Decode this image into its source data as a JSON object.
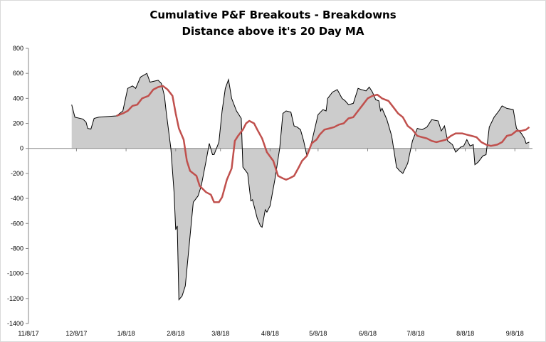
{
  "chart_data": {
    "type": "area",
    "title": "Cumulative P&F Breakouts - Breakdowns",
    "subtitle": "Distance above it's 20 Day MA",
    "xlabel": "",
    "ylabel": "",
    "ylim": [
      -1400,
      800
    ],
    "xlim": [
      "2017-11-08",
      "2018-09-19"
    ],
    "grid": false,
    "legend": "none",
    "y_ticks": [
      800,
      600,
      400,
      200,
      0,
      -200,
      -400,
      -600,
      -800,
      -1000,
      -1200,
      -1400
    ],
    "x_ticks": [
      "11/8/17",
      "12/8/17",
      "1/8/18",
      "2/8/18",
      "3/8/18",
      "4/8/18",
      "5/8/18",
      "6/8/18",
      "7/8/18",
      "8/8/18",
      "9/8/18"
    ],
    "series": [
      {
        "role": "distance",
        "style": "filled area with black outline",
        "fill_color": "#cccccc",
        "line_color": "#000000",
        "points": [
          [
            "2017-12-05",
            350
          ],
          [
            "2017-12-07",
            250
          ],
          [
            "2017-12-12",
            235
          ],
          [
            "2017-12-14",
            210
          ],
          [
            "2017-12-15",
            160
          ],
          [
            "2017-12-17",
            155
          ],
          [
            "2017-12-19",
            240
          ],
          [
            "2017-12-22",
            250
          ],
          [
            "2018-01-02",
            260
          ],
          [
            "2018-01-06",
            300
          ],
          [
            "2018-01-09",
            480
          ],
          [
            "2018-01-12",
            500
          ],
          [
            "2018-01-14",
            480
          ],
          [
            "2018-01-17",
            570
          ],
          [
            "2018-01-21",
            600
          ],
          [
            "2018-01-23",
            530
          ],
          [
            "2018-01-28",
            545
          ],
          [
            "2018-01-30",
            520
          ],
          [
            "2018-02-01",
            420
          ],
          [
            "2018-02-02",
            300
          ],
          [
            "2018-02-05",
            0
          ],
          [
            "2018-02-07",
            -350
          ],
          [
            "2018-02-08",
            -650
          ],
          [
            "2018-02-09",
            -620
          ],
          [
            "2018-02-10",
            -1210
          ],
          [
            "2018-02-12",
            -1180
          ],
          [
            "2018-02-14",
            -1100
          ],
          [
            "2018-02-19",
            -430
          ],
          [
            "2018-02-22",
            -380
          ],
          [
            "2018-02-24",
            -300
          ],
          [
            "2018-02-27",
            -100
          ],
          [
            "2018-03-01",
            40
          ],
          [
            "2018-03-03",
            -50
          ],
          [
            "2018-03-04",
            -50
          ],
          [
            "2018-03-07",
            50
          ],
          [
            "2018-03-09",
            300
          ],
          [
            "2018-03-11",
            480
          ],
          [
            "2018-03-13",
            550
          ],
          [
            "2018-03-15",
            400
          ],
          [
            "2018-03-18",
            300
          ],
          [
            "2018-03-21",
            240
          ],
          [
            "2018-03-22",
            -150
          ],
          [
            "2018-03-25",
            -200
          ],
          [
            "2018-03-27",
            -420
          ],
          [
            "2018-03-28",
            -410
          ],
          [
            "2018-03-31",
            -560
          ],
          [
            "2018-04-02",
            -620
          ],
          [
            "2018-04-03",
            -630
          ],
          [
            "2018-04-05",
            -490
          ],
          [
            "2018-04-06",
            -510
          ],
          [
            "2018-04-08",
            -460
          ],
          [
            "2018-04-11",
            -250
          ],
          [
            "2018-04-14",
            0
          ],
          [
            "2018-04-16",
            280
          ],
          [
            "2018-04-18",
            300
          ],
          [
            "2018-04-21",
            290
          ],
          [
            "2018-04-23",
            180
          ],
          [
            "2018-04-25",
            170
          ],
          [
            "2018-04-27",
            150
          ],
          [
            "2018-04-29",
            60
          ],
          [
            "2018-05-01",
            -60
          ],
          [
            "2018-05-04",
            50
          ],
          [
            "2018-05-08",
            270
          ],
          [
            "2018-05-11",
            310
          ],
          [
            "2018-05-13",
            300
          ],
          [
            "2018-05-14",
            400
          ],
          [
            "2018-05-17",
            450
          ],
          [
            "2018-05-20",
            470
          ],
          [
            "2018-05-23",
            400
          ],
          [
            "2018-05-25",
            380
          ],
          [
            "2018-05-27",
            350
          ],
          [
            "2018-05-30",
            360
          ],
          [
            "2018-06-02",
            480
          ],
          [
            "2018-06-04",
            470
          ],
          [
            "2018-06-07",
            460
          ],
          [
            "2018-06-09",
            490
          ],
          [
            "2018-06-11",
            450
          ],
          [
            "2018-06-13",
            390
          ],
          [
            "2018-06-15",
            380
          ],
          [
            "2018-06-16",
            300
          ],
          [
            "2018-06-17",
            320
          ],
          [
            "2018-06-20",
            230
          ],
          [
            "2018-06-23",
            100
          ],
          [
            "2018-06-26",
            -150
          ],
          [
            "2018-06-28",
            -180
          ],
          [
            "2018-06-30",
            -200
          ],
          [
            "2018-07-03",
            -120
          ],
          [
            "2018-07-06",
            60
          ],
          [
            "2018-07-09",
            160
          ],
          [
            "2018-07-12",
            150
          ],
          [
            "2018-07-15",
            170
          ],
          [
            "2018-07-18",
            230
          ],
          [
            "2018-07-22",
            220
          ],
          [
            "2018-07-24",
            140
          ],
          [
            "2018-07-26",
            180
          ],
          [
            "2018-07-28",
            60
          ],
          [
            "2018-07-31",
            30
          ],
          [
            "2018-08-02",
            -30
          ],
          [
            "2018-08-05",
            10
          ],
          [
            "2018-08-07",
            20
          ],
          [
            "2018-08-09",
            70
          ],
          [
            "2018-08-11",
            20
          ],
          [
            "2018-08-13",
            30
          ],
          [
            "2018-08-14",
            -130
          ],
          [
            "2018-08-16",
            -110
          ],
          [
            "2018-08-19",
            -60
          ],
          [
            "2018-08-21",
            -50
          ],
          [
            "2018-08-23",
            170
          ],
          [
            "2018-08-26",
            250
          ],
          [
            "2018-08-29",
            300
          ],
          [
            "2018-08-31",
            340
          ],
          [
            "2018-09-03",
            320
          ],
          [
            "2018-09-07",
            310
          ],
          [
            "2018-09-09",
            160
          ],
          [
            "2018-09-12",
            120
          ],
          [
            "2018-09-14",
            80
          ],
          [
            "2018-09-15",
            40
          ],
          [
            "2018-09-17",
            50
          ]
        ]
      },
      {
        "role": "20-day moving average",
        "style": "line",
        "line_color": "#c0504d",
        "points": [
          [
            "2018-01-02",
            260
          ],
          [
            "2018-01-06",
            280
          ],
          [
            "2018-01-09",
            300
          ],
          [
            "2018-01-12",
            340
          ],
          [
            "2018-01-15",
            350
          ],
          [
            "2018-01-18",
            400
          ],
          [
            "2018-01-22",
            420
          ],
          [
            "2018-01-25",
            470
          ],
          [
            "2018-01-28",
            490
          ],
          [
            "2018-01-31",
            500
          ],
          [
            "2018-02-03",
            470
          ],
          [
            "2018-02-06",
            420
          ],
          [
            "2018-02-08",
            280
          ],
          [
            "2018-02-10",
            160
          ],
          [
            "2018-02-13",
            70
          ],
          [
            "2018-02-15",
            -100
          ],
          [
            "2018-02-17",
            -180
          ],
          [
            "2018-02-21",
            -220
          ],
          [
            "2018-02-23",
            -300
          ],
          [
            "2018-02-27",
            -350
          ],
          [
            "2018-03-02",
            -370
          ],
          [
            "2018-03-04",
            -430
          ],
          [
            "2018-03-07",
            -430
          ],
          [
            "2018-03-09",
            -390
          ],
          [
            "2018-03-12",
            -250
          ],
          [
            "2018-03-15",
            -160
          ],
          [
            "2018-03-17",
            60
          ],
          [
            "2018-03-19",
            100
          ],
          [
            "2018-03-22",
            150
          ],
          [
            "2018-03-24",
            200
          ],
          [
            "2018-03-26",
            220
          ],
          [
            "2018-03-29",
            200
          ],
          [
            "2018-03-31",
            150
          ],
          [
            "2018-04-03",
            80
          ],
          [
            "2018-04-06",
            -30
          ],
          [
            "2018-04-10",
            -100
          ],
          [
            "2018-04-13",
            -220
          ],
          [
            "2018-04-16",
            -240
          ],
          [
            "2018-04-18",
            -250
          ],
          [
            "2018-04-20",
            -240
          ],
          [
            "2018-04-23",
            -220
          ],
          [
            "2018-04-26",
            -150
          ],
          [
            "2018-04-28",
            -100
          ],
          [
            "2018-05-01",
            -60
          ],
          [
            "2018-05-04",
            40
          ],
          [
            "2018-05-07",
            70
          ],
          [
            "2018-05-09",
            110
          ],
          [
            "2018-05-12",
            150
          ],
          [
            "2018-05-15",
            160
          ],
          [
            "2018-05-18",
            170
          ],
          [
            "2018-05-21",
            190
          ],
          [
            "2018-05-24",
            200
          ],
          [
            "2018-05-27",
            240
          ],
          [
            "2018-05-30",
            250
          ],
          [
            "2018-06-02",
            300
          ],
          [
            "2018-06-05",
            350
          ],
          [
            "2018-06-08",
            400
          ],
          [
            "2018-06-11",
            420
          ],
          [
            "2018-06-14",
            430
          ],
          [
            "2018-06-17",
            400
          ],
          [
            "2018-06-21",
            380
          ],
          [
            "2018-06-24",
            330
          ],
          [
            "2018-06-27",
            280
          ],
          [
            "2018-06-30",
            250
          ],
          [
            "2018-07-03",
            180
          ],
          [
            "2018-07-06",
            150
          ],
          [
            "2018-07-09",
            100
          ],
          [
            "2018-07-12",
            90
          ],
          [
            "2018-07-15",
            80
          ],
          [
            "2018-07-18",
            60
          ],
          [
            "2018-07-21",
            50
          ],
          [
            "2018-07-24",
            60
          ],
          [
            "2018-07-27",
            70
          ],
          [
            "2018-07-30",
            100
          ],
          [
            "2018-08-02",
            120
          ],
          [
            "2018-08-06",
            120
          ],
          [
            "2018-08-09",
            110
          ],
          [
            "2018-08-12",
            100
          ],
          [
            "2018-08-15",
            90
          ],
          [
            "2018-08-18",
            50
          ],
          [
            "2018-08-21",
            30
          ],
          [
            "2018-08-24",
            20
          ],
          [
            "2018-08-28",
            30
          ],
          [
            "2018-08-31",
            50
          ],
          [
            "2018-09-03",
            100
          ],
          [
            "2018-09-06",
            110
          ],
          [
            "2018-09-09",
            140
          ],
          [
            "2018-09-12",
            140
          ],
          [
            "2018-09-15",
            150
          ],
          [
            "2018-09-17",
            170
          ]
        ]
      }
    ]
  }
}
